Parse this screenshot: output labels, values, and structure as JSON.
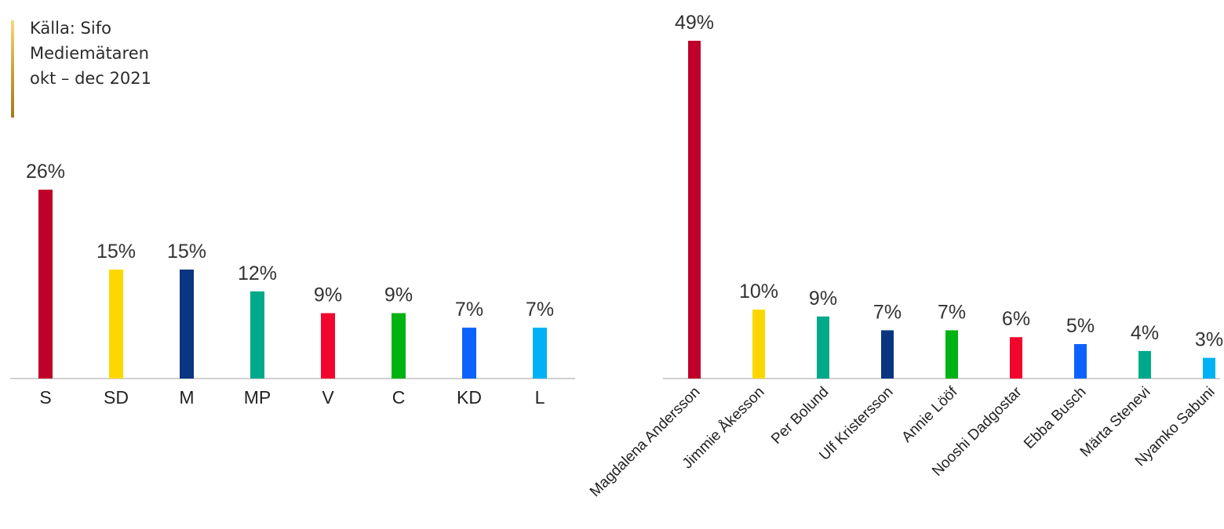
{
  "source": {
    "lines": [
      "Källa: Sifo",
      "Mediemätaren",
      "okt – dec 2021"
    ]
  },
  "chart_data": [
    {
      "type": "bar",
      "categories": [
        "S",
        "SD",
        "M",
        "MP",
        "V",
        "C",
        "KD",
        "L"
      ],
      "values": [
        26,
        15,
        15,
        12,
        9,
        9,
        7,
        7
      ],
      "value_labels": [
        "26%",
        "15%",
        "15%",
        "12%",
        "9%",
        "9%",
        "7%",
        "7%"
      ],
      "colors": [
        "#c0002a",
        "#fdd800",
        "#0a3580",
        "#00a98a",
        "#f2062e",
        "#00b212",
        "#0c62fb",
        "#00b2f5"
      ],
      "ylim": [
        0,
        26
      ],
      "grid": false,
      "legend": "none"
    },
    {
      "type": "bar",
      "categories": [
        "Magdalena Andersson",
        "Jimmie Åkesson",
        "Per Bolund",
        "Ulf Kristersson",
        "Annie Lööf",
        "Nooshi Dadgostar",
        "Ebba Busch",
        "Märta Stenevi",
        "Nyamko Sabuni"
      ],
      "values": [
        49,
        10,
        9,
        7,
        7,
        6,
        5,
        4,
        3
      ],
      "value_labels": [
        "49%",
        "10%",
        "9%",
        "7%",
        "7%",
        "6%",
        "5%",
        "4%",
        "3%"
      ],
      "colors": [
        "#c0002a",
        "#fdd800",
        "#00a98a",
        "#0a3580",
        "#00b212",
        "#f2062e",
        "#0c62fb",
        "#00a98a",
        "#00b2f5"
      ],
      "ylim": [
        0,
        49
      ],
      "grid": false,
      "legend": "none"
    }
  ]
}
